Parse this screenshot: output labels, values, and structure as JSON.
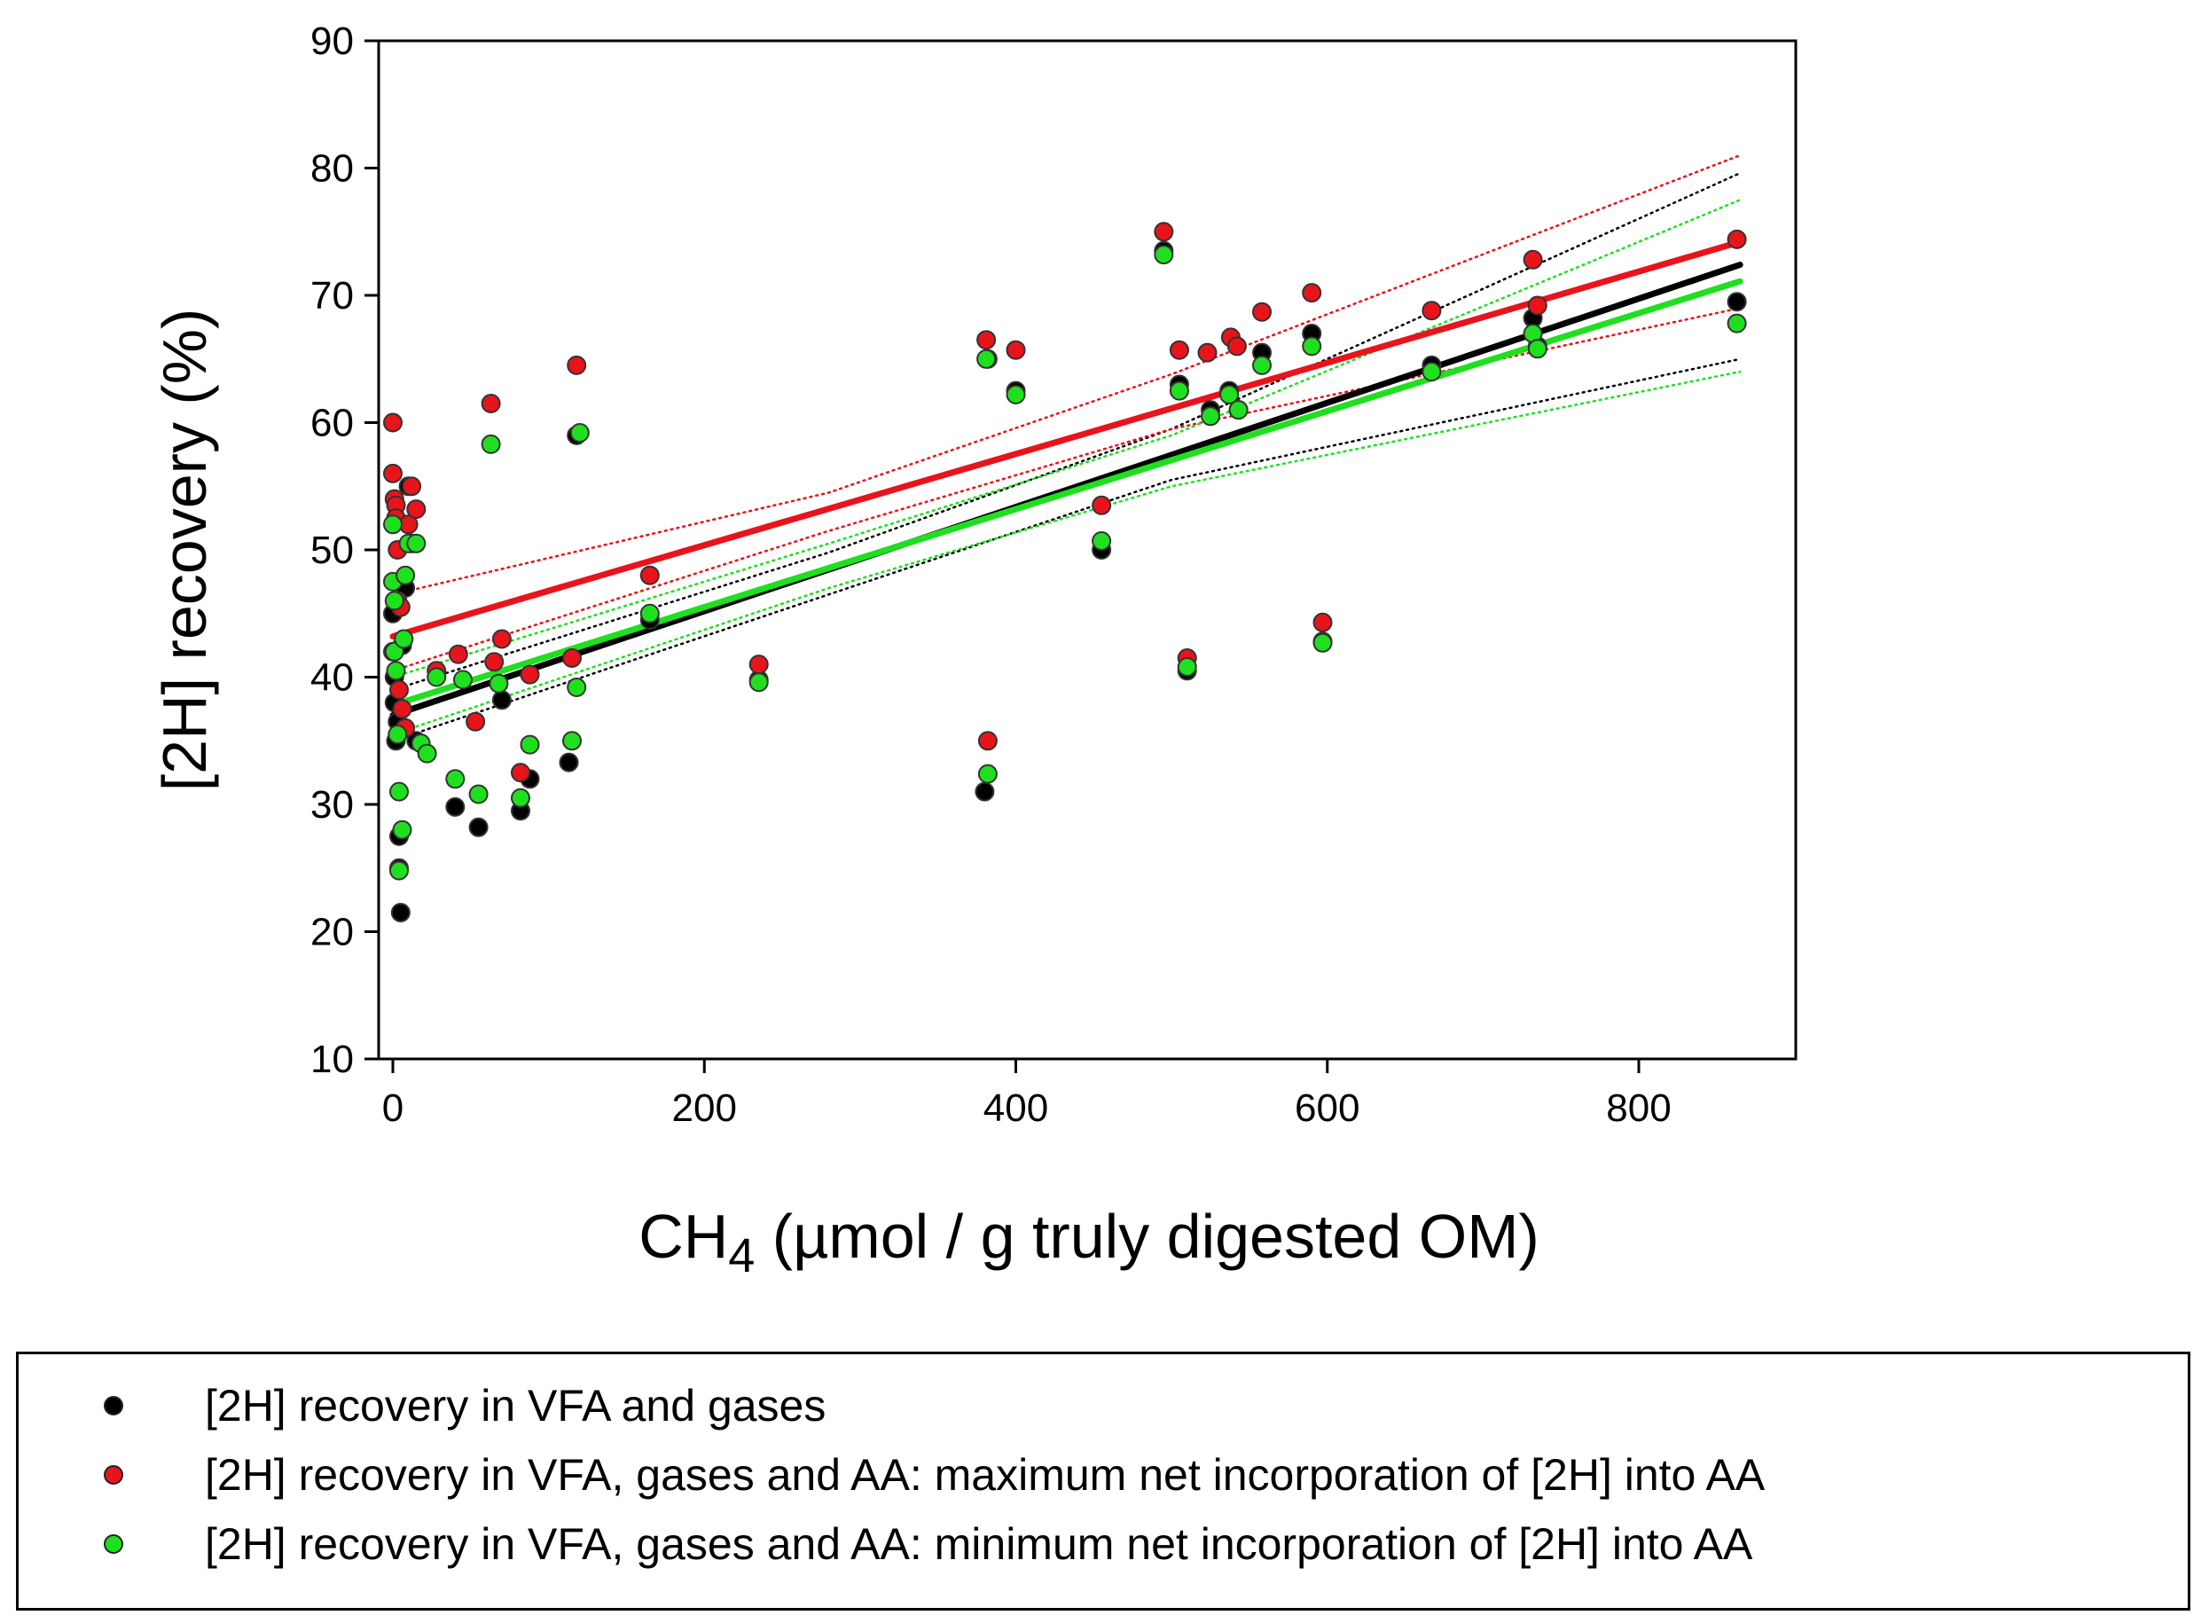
{
  "chart_data": {
    "type": "scatter",
    "xlabel_main": "CH",
    "xlabel_sub": "4",
    "xlabel_rest": " (µmol / g truly digested OM)",
    "ylabel": "[2H] recovery (%)",
    "xlim": [
      -10,
      900
    ],
    "ylim": [
      10,
      90
    ],
    "xticks": [
      0,
      200,
      400,
      600,
      800
    ],
    "yticks": [
      10,
      20,
      30,
      40,
      50,
      60,
      70,
      80,
      90
    ],
    "series": [
      {
        "name": "[2H] recovery in VFA and gases",
        "color": "#000000",
        "points": [
          [
            0,
            45
          ],
          [
            0,
            42
          ],
          [
            1,
            40
          ],
          [
            1,
            38
          ],
          [
            2,
            35
          ],
          [
            3,
            36.5
          ],
          [
            4,
            27.5
          ],
          [
            4,
            25
          ],
          [
            5,
            21.5
          ],
          [
            6,
            42.5
          ],
          [
            8,
            47
          ],
          [
            10,
            55
          ],
          [
            12,
            50.5
          ],
          [
            15,
            35
          ],
          [
            40,
            29.8
          ],
          [
            55,
            28.2
          ],
          [
            70,
            38.2
          ],
          [
            82,
            29.5
          ],
          [
            88,
            32
          ],
          [
            113,
            33.3
          ],
          [
            118,
            59
          ],
          [
            165,
            44.5
          ],
          [
            235,
            39.8
          ],
          [
            380,
            31
          ],
          [
            382,
            65
          ],
          [
            400,
            62.5
          ],
          [
            455,
            50
          ],
          [
            495,
            73.5
          ],
          [
            505,
            63
          ],
          [
            510,
            40.5
          ],
          [
            525,
            61
          ],
          [
            537,
            62.5
          ],
          [
            543,
            61
          ],
          [
            558,
            65.5
          ],
          [
            590,
            67
          ],
          [
            597,
            42.8
          ],
          [
            667,
            64.5
          ],
          [
            732,
            68.2
          ],
          [
            735,
            66
          ],
          [
            863,
            69.5
          ]
        ],
        "fit": [
          [
            0,
            37
          ],
          [
            865,
            72.4
          ]
        ],
        "ci_upper": [
          [
            0,
            39
          ],
          [
            280,
            49.8
          ],
          [
            500,
            59.5
          ],
          [
            865,
            79.6
          ]
        ],
        "ci_lower": [
          [
            0,
            35
          ],
          [
            280,
            46.5
          ],
          [
            500,
            55.5
          ],
          [
            865,
            65
          ]
        ]
      },
      {
        "name": "[2H] recovery in VFA, gases and AA: maximum net incorporation of [2H] into AA",
        "color": "#e8141b",
        "points": [
          [
            0,
            60
          ],
          [
            0,
            56
          ],
          [
            1,
            54
          ],
          [
            2,
            53.5
          ],
          [
            2,
            52.5
          ],
          [
            3,
            50
          ],
          [
            3,
            46
          ],
          [
            4,
            39
          ],
          [
            5,
            45.5
          ],
          [
            6,
            37.5
          ],
          [
            8,
            36
          ],
          [
            10,
            52
          ],
          [
            12,
            55
          ],
          [
            15,
            53.2
          ],
          [
            28,
            40.5
          ],
          [
            42,
            41.8
          ],
          [
            53,
            36.5
          ],
          [
            63,
            61.5
          ],
          [
            65,
            41.2
          ],
          [
            70,
            43
          ],
          [
            82,
            32.5
          ],
          [
            88,
            40.2
          ],
          [
            115,
            41.5
          ],
          [
            118,
            64.5
          ],
          [
            165,
            48
          ],
          [
            235,
            41
          ],
          [
            381,
            66.5
          ],
          [
            382,
            35
          ],
          [
            400,
            65.7
          ],
          [
            455,
            53.5
          ],
          [
            495,
            75
          ],
          [
            505,
            65.7
          ],
          [
            510,
            41.5
          ],
          [
            523,
            65.5
          ],
          [
            538,
            66.7
          ],
          [
            542,
            66
          ],
          [
            558,
            68.7
          ],
          [
            590,
            70.2
          ],
          [
            597,
            44.3
          ],
          [
            667,
            68.8
          ],
          [
            732,
            72.8
          ],
          [
            735,
            69.2
          ],
          [
            863,
            74.4
          ]
        ],
        "fit": [
          [
            0,
            43.2
          ],
          [
            865,
            74.2
          ]
        ],
        "ci_upper": [
          [
            0,
            46.5
          ],
          [
            280,
            54.5
          ],
          [
            500,
            63.8
          ],
          [
            865,
            81
          ]
        ],
        "ci_lower": [
          [
            0,
            40.5
          ],
          [
            280,
            51.5
          ],
          [
            500,
            59.5
          ],
          [
            865,
            69
          ]
        ]
      },
      {
        "name": "[2H] recovery in VFA, gases and AA: minimum net incorporation of [2H] into AA",
        "color": "#1fe01f",
        "points": [
          [
            0,
            52
          ],
          [
            0,
            47.5
          ],
          [
            1,
            46
          ],
          [
            1,
            42
          ],
          [
            2,
            40.5
          ],
          [
            3,
            35.5
          ],
          [
            4,
            31
          ],
          [
            4,
            24.8
          ],
          [
            6,
            28
          ],
          [
            7,
            43
          ],
          [
            8,
            48
          ],
          [
            10,
            50.5
          ],
          [
            15,
            50.5
          ],
          [
            18,
            34.8
          ],
          [
            22,
            34
          ],
          [
            28,
            40
          ],
          [
            40,
            32
          ],
          [
            45,
            39.8
          ],
          [
            55,
            30.8
          ],
          [
            63,
            58.3
          ],
          [
            68,
            39.5
          ],
          [
            82,
            30.5
          ],
          [
            88,
            34.7
          ],
          [
            115,
            35
          ],
          [
            118,
            39.2
          ],
          [
            120,
            59.2
          ],
          [
            165,
            45
          ],
          [
            235,
            39.6
          ],
          [
            381,
            65
          ],
          [
            382,
            32.4
          ],
          [
            400,
            62.2
          ],
          [
            455,
            50.7
          ],
          [
            495,
            73.2
          ],
          [
            505,
            62.5
          ],
          [
            510,
            40.8
          ],
          [
            525,
            60.5
          ],
          [
            537,
            62.2
          ],
          [
            543,
            61
          ],
          [
            558,
            64.5
          ],
          [
            590,
            66
          ],
          [
            597,
            42.7
          ],
          [
            667,
            64
          ],
          [
            732,
            67
          ],
          [
            735,
            65.8
          ],
          [
            863,
            67.8
          ]
        ],
        "fit": [
          [
            0,
            37.8
          ],
          [
            865,
            71.1
          ]
        ],
        "ci_upper": [
          [
            0,
            40
          ],
          [
            280,
            50.5
          ],
          [
            500,
            59
          ],
          [
            865,
            77.5
          ]
        ],
        "ci_lower": [
          [
            0,
            35.5
          ],
          [
            280,
            47
          ],
          [
            500,
            55
          ],
          [
            865,
            64
          ]
        ]
      }
    ]
  }
}
